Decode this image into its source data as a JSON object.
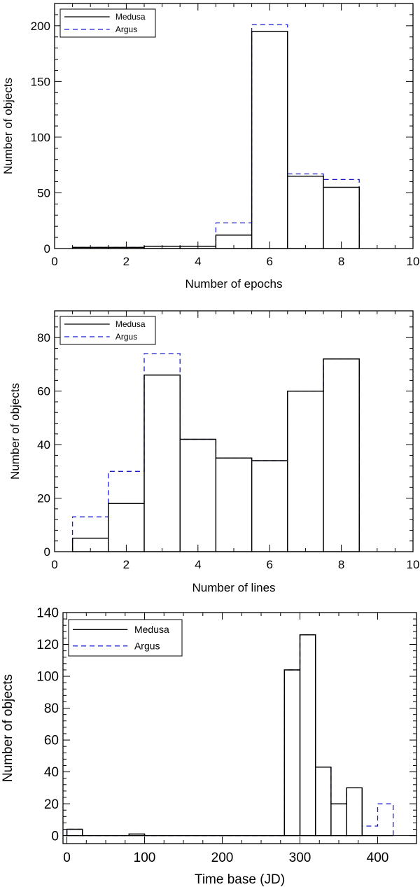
{
  "colors": {
    "medusa": "#000000",
    "argus": "#1a1acc"
  },
  "chart_data": [
    {
      "type": "bar",
      "subtype": "step-histogram",
      "title": "",
      "xlabel": "Number of epochs",
      "ylabel": "Number of objects",
      "xlim": [
        0,
        10
      ],
      "ylim": [
        0,
        220
      ],
      "xticks": [
        0,
        2,
        4,
        6,
        8,
        10
      ],
      "xtick_labels": [
        "0",
        "2",
        "4",
        "6",
        "8",
        "10"
      ],
      "yticks": [
        0,
        50,
        100,
        150,
        200
      ],
      "ytick_labels": [
        "0",
        "50",
        "100",
        "150",
        "200"
      ],
      "legend": {
        "position": "top-left",
        "entries": [
          "Medusa",
          "Argus"
        ]
      },
      "bin_edges": [
        0.5,
        1.5,
        2.5,
        3.5,
        4.5,
        5.5,
        6.5,
        7.5,
        8.5
      ],
      "series": [
        {
          "name": "Medusa",
          "style": "solid",
          "values": [
            1,
            1,
            2,
            2,
            12,
            195,
            65,
            55
          ]
        },
        {
          "name": "Argus",
          "style": "dashed",
          "values": [
            1,
            1,
            2,
            2,
            23,
            201,
            67,
            62
          ]
        }
      ]
    },
    {
      "type": "bar",
      "subtype": "step-histogram",
      "title": "",
      "xlabel": "Number of lines",
      "ylabel": "Number of objects",
      "xlim": [
        0,
        10
      ],
      "ylim": [
        0,
        90
      ],
      "xticks": [
        0,
        2,
        4,
        6,
        8,
        10
      ],
      "xtick_labels": [
        "0",
        "2",
        "4",
        "6",
        "8",
        "10"
      ],
      "yticks": [
        0,
        20,
        40,
        60,
        80
      ],
      "ytick_labels": [
        "0",
        "20",
        "40",
        "60",
        "80"
      ],
      "legend": {
        "position": "top-left",
        "entries": [
          "Medusa",
          "Argus"
        ]
      },
      "bin_edges": [
        0.5,
        1.5,
        2.5,
        3.5,
        4.5,
        5.5,
        6.5,
        7.5,
        8.5
      ],
      "series": [
        {
          "name": "Medusa",
          "style": "solid",
          "values": [
            5,
            18,
            66,
            42,
            35,
            34,
            60,
            72
          ]
        },
        {
          "name": "Argus",
          "style": "dashed",
          "values": [
            13,
            30,
            74,
            42,
            35,
            34,
            60,
            72
          ]
        }
      ]
    },
    {
      "type": "bar",
      "subtype": "step-histogram",
      "title": "",
      "xlabel": "Time base (JD)",
      "ylabel": "Number of objects",
      "xlim": [
        -5,
        450
      ],
      "ylim": [
        -5,
        140
      ],
      "xticks": [
        0,
        100,
        200,
        300,
        400
      ],
      "xtick_labels": [
        "0",
        "100",
        "200",
        "300",
        "400"
      ],
      "yticks": [
        0,
        20,
        40,
        60,
        80,
        100,
        120,
        140
      ],
      "ytick_labels": [
        "0",
        "20",
        "40",
        "60",
        "80",
        "100",
        "120",
        "140"
      ],
      "legend": {
        "position": "top-left",
        "entries": [
          "Medusa",
          "Argus"
        ]
      },
      "bin_edges": [
        0,
        20,
        40,
        60,
        80,
        100,
        120,
        140,
        160,
        180,
        200,
        220,
        240,
        260,
        280,
        300,
        320,
        340,
        360,
        380,
        400,
        420
      ],
      "series": [
        {
          "name": "Medusa",
          "style": "solid",
          "values": [
            4,
            0,
            0,
            0,
            1,
            0,
            0,
            0,
            0,
            0,
            0,
            0,
            0,
            0,
            104,
            126,
            43,
            20,
            30,
            0,
            0
          ]
        },
        {
          "name": "Argus",
          "style": "dashed",
          "values": [
            4,
            0,
            0,
            0,
            1,
            0,
            0,
            0,
            0,
            0,
            0,
            0,
            0,
            0,
            104,
            126,
            43,
            20,
            30,
            6,
            20
          ]
        }
      ]
    }
  ]
}
